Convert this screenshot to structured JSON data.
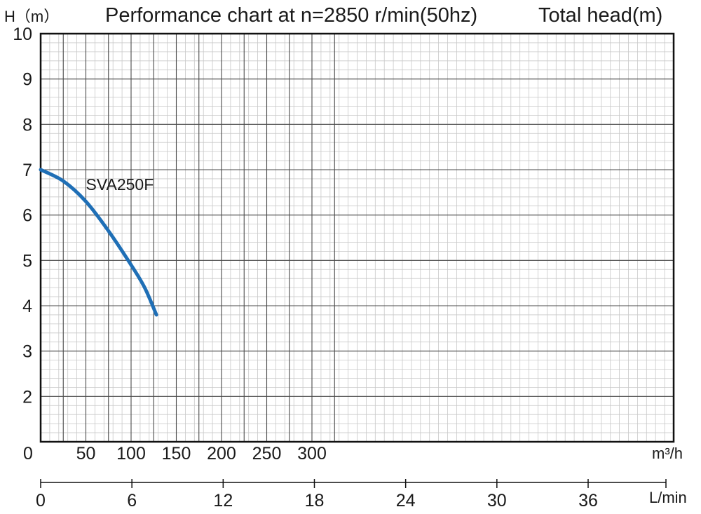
{
  "title": "Performance chart at n=2850 r/min(50hz)",
  "right_title": "Total head(m)",
  "colors": {
    "curve": "#1f6fb6",
    "grid_minor": "#c8c8c8",
    "grid_major": "#4a4a4a",
    "axis": "#111111"
  },
  "chart_data": {
    "type": "line",
    "title": "Performance chart at n=2850 r/min(50hz)",
    "ylabel": "H（m）",
    "xlabel": "m³/h",
    "x2label": "L/min",
    "ylim": [
      1,
      10
    ],
    "xlim": [
      0,
      350
    ],
    "x2lim": [
      0,
      41
    ],
    "grid": true,
    "y_ticks": [
      "10",
      "9",
      "8",
      "7",
      "6",
      "5",
      "4",
      "3",
      "2"
    ],
    "y_tick_values": [
      10,
      9,
      8,
      7,
      6,
      5,
      4,
      3,
      2
    ],
    "x_origin_label": "0",
    "x_ticks": [
      "50",
      "100",
      "150",
      "200",
      "250",
      "300"
    ],
    "x_tick_values": [
      50,
      100,
      150,
      200,
      250,
      300
    ],
    "x2_ticks": [
      "0",
      "6",
      "12",
      "18",
      "24",
      "30",
      "36"
    ],
    "x2_tick_values": [
      0,
      6,
      12,
      18,
      24,
      30,
      36
    ],
    "series": [
      {
        "name": "SVA250F",
        "x": [
          0,
          25,
          50,
          75,
          100,
          115,
          128
        ],
        "y": [
          7.0,
          6.75,
          6.3,
          5.65,
          4.9,
          4.4,
          3.8
        ]
      }
    ]
  }
}
